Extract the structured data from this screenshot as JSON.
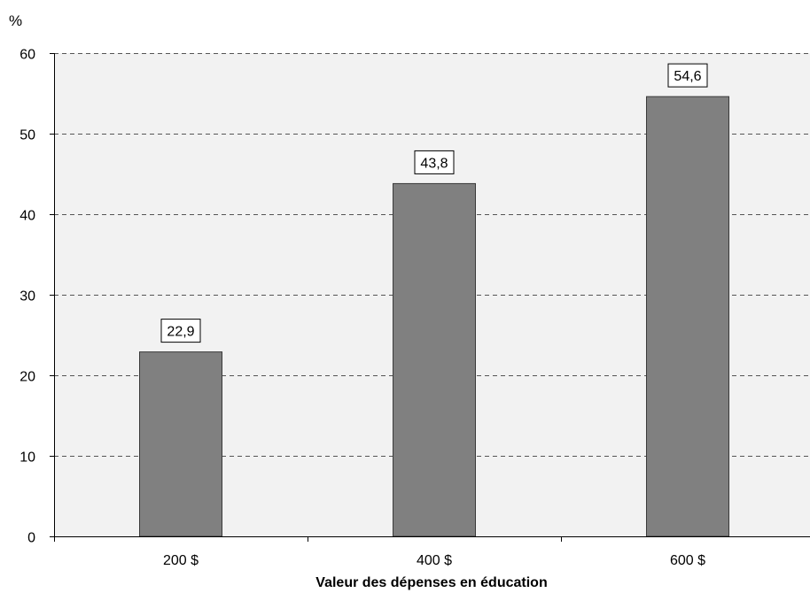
{
  "chart_data": {
    "type": "bar",
    "y_unit": "%",
    "categories": [
      "200 $",
      "400 $",
      "600 $"
    ],
    "values": [
      22.9,
      43.8,
      54.6
    ],
    "value_labels": [
      "22,9",
      "43,8",
      "54,6"
    ],
    "xlabel": "Valeur des dépenses en éducation",
    "ylabel": "",
    "ylim": [
      0,
      60
    ],
    "yticks": [
      0,
      10,
      20,
      30,
      40,
      50,
      60
    ],
    "grid": "horizontal dashed",
    "colors": {
      "bar": "#808080",
      "bar_border": "#3a3a3a",
      "plot_background": "#f2f2f2",
      "gridline": "#555555",
      "label_box_border": "#000000"
    }
  }
}
